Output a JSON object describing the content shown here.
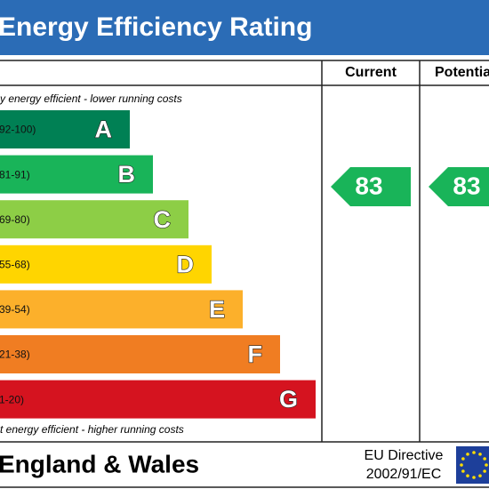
{
  "header": {
    "title": "Energy Efficiency Rating"
  },
  "columns": {
    "current": "Current",
    "potential": "Potentia"
  },
  "top_note": "y energy efficient - lower running costs",
  "bottom_note": "t energy efficient - higher running costs",
  "bands": [
    {
      "range": "92-100)",
      "letter": "A"
    },
    {
      "range": "81-91)",
      "letter": "B"
    },
    {
      "range": "69-80)",
      "letter": "C"
    },
    {
      "range": "55-68)",
      "letter": "D"
    },
    {
      "range": "39-54)",
      "letter": "E"
    },
    {
      "range": "21-38)",
      "letter": "F"
    },
    {
      "range": "1-20)",
      "letter": "G"
    }
  ],
  "ratings": {
    "current": 83,
    "potential": 83
  },
  "footer": {
    "region": "England & Wales",
    "directive_line1": "EU Directive",
    "directive_line2": "2002/91/EC"
  }
}
